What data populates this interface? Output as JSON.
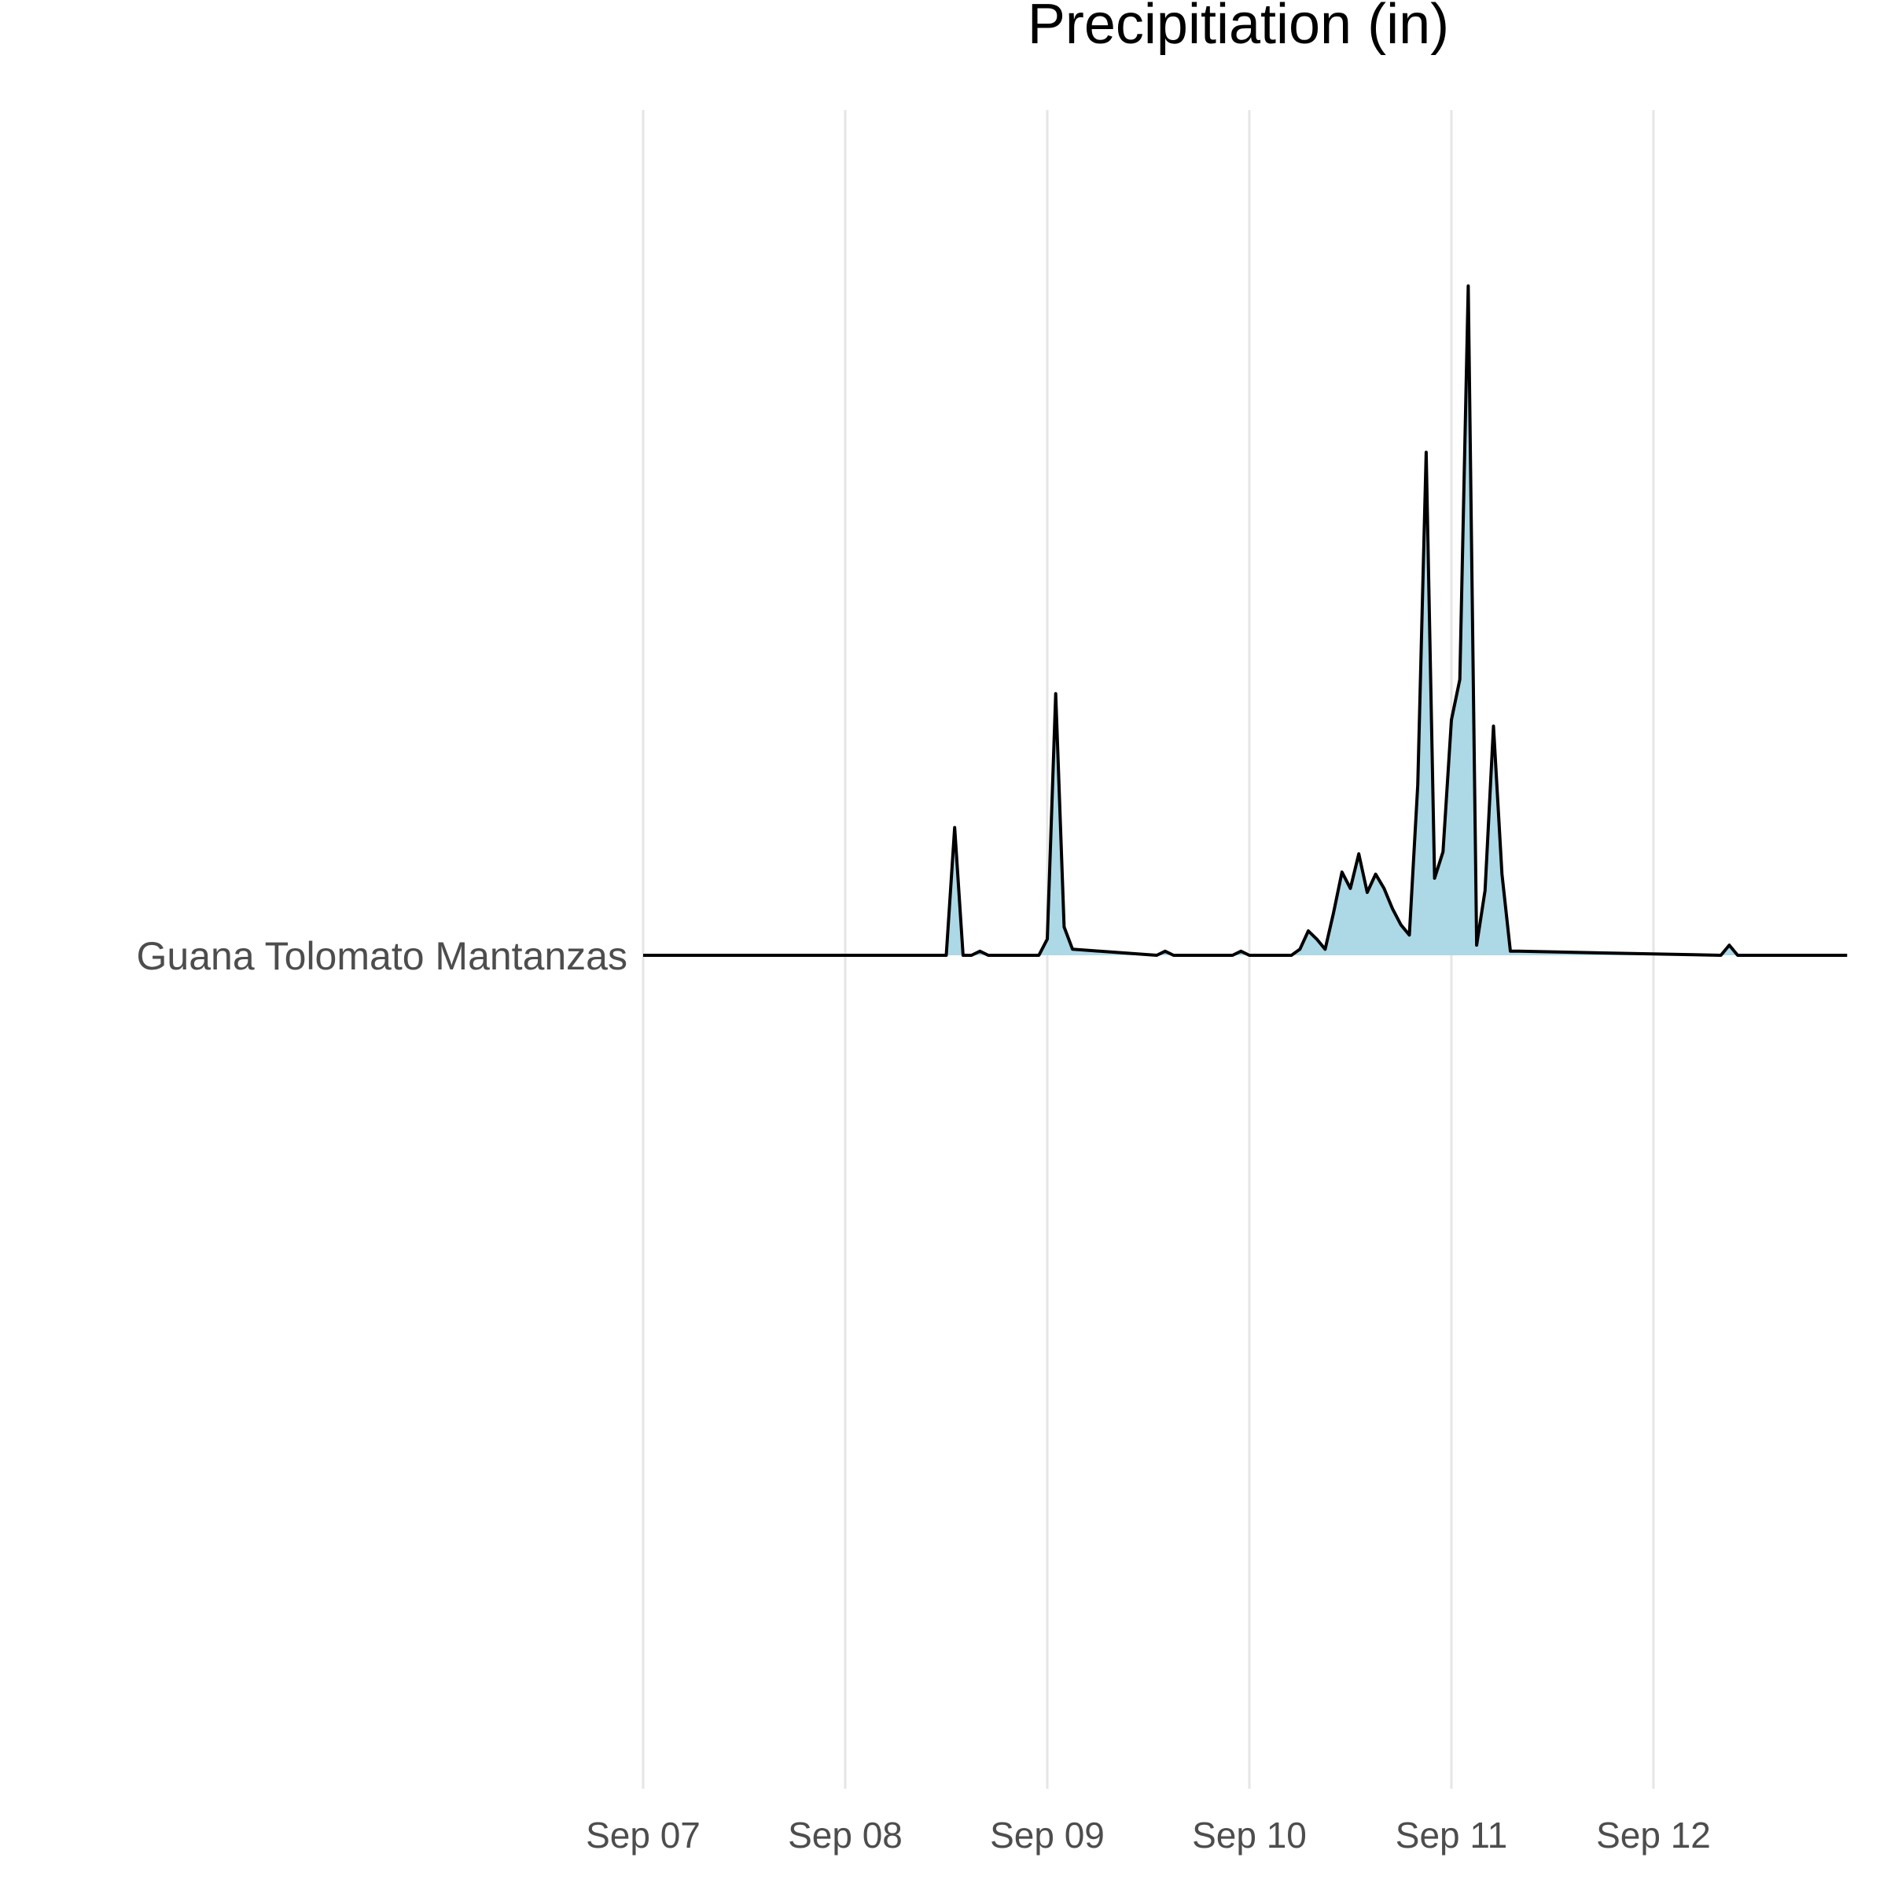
{
  "chart_data": {
    "type": "area",
    "title": "Precipitiation (in)",
    "xlabel": "",
    "ylabel": "",
    "grid": true,
    "legend": "none",
    "colors": {
      "fill": "#add8e6",
      "line": "#000000",
      "grid": "#e6e6e6"
    },
    "x_ticks": [
      "Sep 07",
      "Sep 08",
      "Sep 09",
      "Sep 10",
      "Sep 11",
      "Sep 12"
    ],
    "xlim": [
      "2019-09-07T00:00",
      "2019-09-12T23:00"
    ],
    "categories": [
      "Guana Tolomato Mantanzas"
    ],
    "series": [
      {
        "name": "Guana Tolomato Mantanzas",
        "x": [
          "2019-09-07T00:00",
          "2019-09-08T12:00",
          "2019-09-08T13:00",
          "2019-09-08T14:00",
          "2019-09-08T15:00",
          "2019-09-08T16:00",
          "2019-09-08T17:00",
          "2019-09-08T23:00",
          "2019-09-09T00:00",
          "2019-09-09T01:00",
          "2019-09-09T02:00",
          "2019-09-09T03:00",
          "2019-09-09T13:00",
          "2019-09-09T14:00",
          "2019-09-09T15:00",
          "2019-09-09T22:00",
          "2019-09-09T23:00",
          "2019-09-10T00:00",
          "2019-09-10T05:00",
          "2019-09-10T06:00",
          "2019-09-10T07:00",
          "2019-09-10T08:00",
          "2019-09-10T09:00",
          "2019-09-10T10:00",
          "2019-09-10T11:00",
          "2019-09-10T12:00",
          "2019-09-10T13:00",
          "2019-09-10T14:00",
          "2019-09-10T15:00",
          "2019-09-10T16:00",
          "2019-09-10T17:00",
          "2019-09-10T18:00",
          "2019-09-10T19:00",
          "2019-09-10T20:00",
          "2019-09-10T21:00",
          "2019-09-10T22:00",
          "2019-09-10T23:00",
          "2019-09-11T00:00",
          "2019-09-11T01:00",
          "2019-09-11T02:00",
          "2019-09-11T03:00",
          "2019-09-11T04:00",
          "2019-09-11T05:00",
          "2019-09-11T06:00",
          "2019-09-11T07:00",
          "2019-09-11T08:00",
          "2019-09-12T08:00",
          "2019-09-12T09:00",
          "2019-09-12T10:00",
          "2019-09-12T23:00"
        ],
        "values": [
          0,
          0,
          0.63,
          0,
          0,
          0.02,
          0,
          0,
          0.08,
          1.29,
          0.14,
          0.03,
          0,
          0.02,
          0,
          0,
          0.02,
          0,
          0,
          0.03,
          0.12,
          0.08,
          0.03,
          0.21,
          0.41,
          0.33,
          0.5,
          0.31,
          0.4,
          0.33,
          0.23,
          0.15,
          0.1,
          0.84,
          2.48,
          0.38,
          0.51,
          1.16,
          1.36,
          3.3,
          0.05,
          0.32,
          1.13,
          0.4,
          0.02,
          0.02,
          0,
          0.05,
          0,
          0
        ]
      }
    ]
  }
}
